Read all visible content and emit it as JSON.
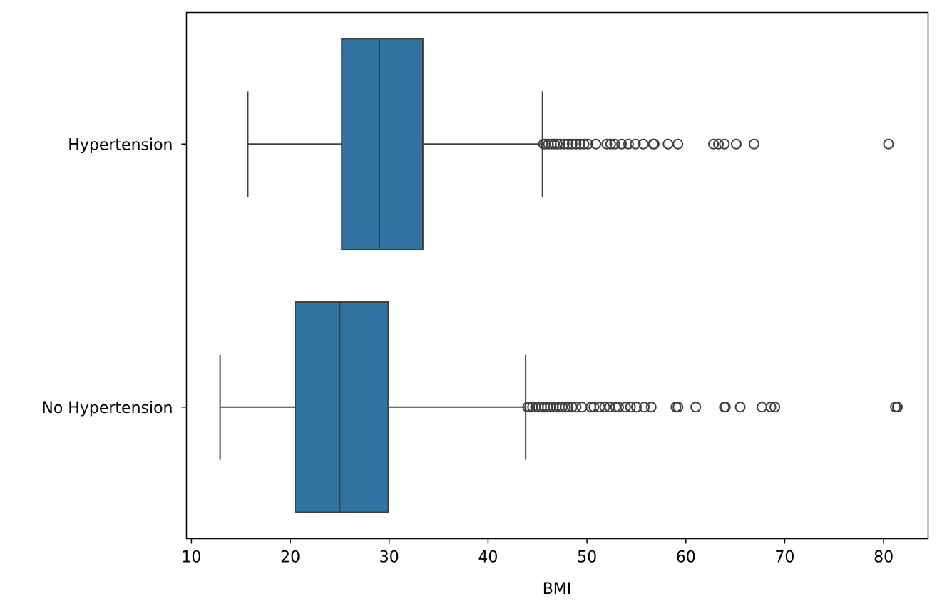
{
  "chart_data": {
    "type": "boxplot",
    "orientation": "horizontal",
    "title": "",
    "xlabel": "BMI",
    "ylabel": "",
    "xlim": [
      9.5,
      84.5
    ],
    "x_ticks": [
      10,
      20,
      30,
      40,
      50,
      60,
      70,
      80
    ],
    "x_tick_labels": [
      "10",
      "20",
      "30",
      "40",
      "50",
      "60",
      "70",
      "80"
    ],
    "grid": false,
    "legend": "none",
    "box_color": "#3274a1",
    "line_color": "#3f3f3f",
    "categories": [
      "Hypertension",
      "No Hypertension"
    ],
    "series": [
      {
        "category": "Hypertension",
        "whisker_low": 15.7,
        "q1": 25.2,
        "median": 29.0,
        "q3": 33.4,
        "whisker_high": 45.5,
        "outliers": [
          45.6,
          45.8,
          46.1,
          46.4,
          46.7,
          47.0,
          47.3,
          47.7,
          48.1,
          48.5,
          48.9,
          49.3,
          49.7,
          50.1,
          50.9,
          52.0,
          52.4,
          52.8,
          53.5,
          54.2,
          54.9,
          55.7,
          56.7,
          56.8,
          58.2,
          59.2,
          62.8,
          63.3,
          63.9,
          65.1,
          66.9,
          80.5
        ]
      },
      {
        "category": "No Hypertension",
        "whisker_low": 12.9,
        "q1": 20.5,
        "median": 25.0,
        "q3": 29.9,
        "whisker_high": 43.8,
        "outliers": [
          44.0,
          44.2,
          44.5,
          44.8,
          45.1,
          45.4,
          45.7,
          46.0,
          46.3,
          46.6,
          46.9,
          47.2,
          47.5,
          47.8,
          48.1,
          48.5,
          48.9,
          49.5,
          50.4,
          50.7,
          51.3,
          51.8,
          52.3,
          52.9,
          53.2,
          53.9,
          54.4,
          55.0,
          55.8,
          56.5,
          59.0,
          59.2,
          61.0,
          63.9,
          64.0,
          65.5,
          67.7,
          68.6,
          69.0,
          81.2,
          81.4
        ]
      }
    ]
  }
}
